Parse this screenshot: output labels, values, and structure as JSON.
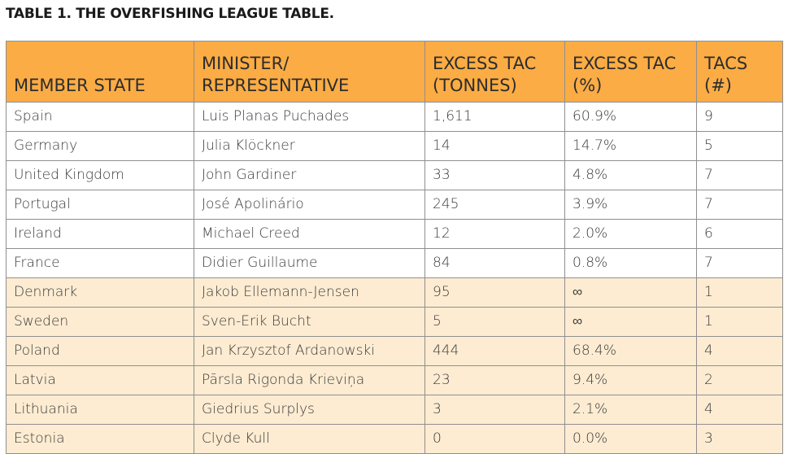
{
  "title": "TABLE 1. THE OVERFISHING LEAGUE TABLE.",
  "columns": [
    "MEMBER STATE",
    "MINISTER/ REPRESENTATIVE",
    "EXCESS TAC (TONNES)",
    "EXCESS TAC (%)",
    "TACS (#)"
  ],
  "rows": [
    {
      "state": "Spain",
      "minister": "Luis Planas Puchades",
      "tonnes": "1,611",
      "percent": "60.9%",
      "tacs": "9",
      "group": "a"
    },
    {
      "state": "Germany",
      "minister": "Julia Klöckner",
      "tonnes": "14",
      "percent": "14.7%",
      "tacs": "5",
      "group": "a"
    },
    {
      "state": "United Kingdom",
      "minister": "John Gardiner",
      "tonnes": "33",
      "percent": "4.8%",
      "tacs": "7",
      "group": "a"
    },
    {
      "state": "Portugal",
      "minister": "José Apolinário",
      "tonnes": "245",
      "percent": "3.9%",
      "tacs": "7",
      "group": "a"
    },
    {
      "state": "Ireland",
      "minister": "Michael Creed",
      "tonnes": "12",
      "percent": "2.0%",
      "tacs": "6",
      "group": "a"
    },
    {
      "state": "France",
      "minister": "Didier Guillaume",
      "tonnes": "84",
      "percent": "0.8%",
      "tacs": "7",
      "group": "a"
    },
    {
      "state": "Denmark",
      "minister": "Jakob Ellemann-Jensen",
      "tonnes": "95",
      "percent": "∞",
      "tacs": "1",
      "group": "b"
    },
    {
      "state": "Sweden",
      "minister": "Sven-Erik Bucht",
      "tonnes": "5",
      "percent": "∞",
      "tacs": "1",
      "group": "b"
    },
    {
      "state": "Poland",
      "minister": "Jan Krzysztof Ardanowski",
      "tonnes": "444",
      "percent": "68.4%",
      "tacs": "4",
      "group": "b"
    },
    {
      "state": "Latvia",
      "minister": "Pārsla Rigonda Krieviņa",
      "tonnes": "23",
      "percent": "9.4%",
      "tacs": "2",
      "group": "b"
    },
    {
      "state": "Lithuania",
      "minister": "Giedrius Surplys",
      "tonnes": "3",
      "percent": "2.1%",
      "tacs": "4",
      "group": "b"
    },
    {
      "state": "Estonia",
      "minister": "Clyde Kull",
      "tonnes": "0",
      "percent": "0.0%",
      "tacs": "3",
      "group": "b"
    }
  ],
  "colors": {
    "header": "#fbac44",
    "row_group_a": "#ffffff",
    "row_group_b": "#fdecd2",
    "border": "#8f8f8f"
  }
}
